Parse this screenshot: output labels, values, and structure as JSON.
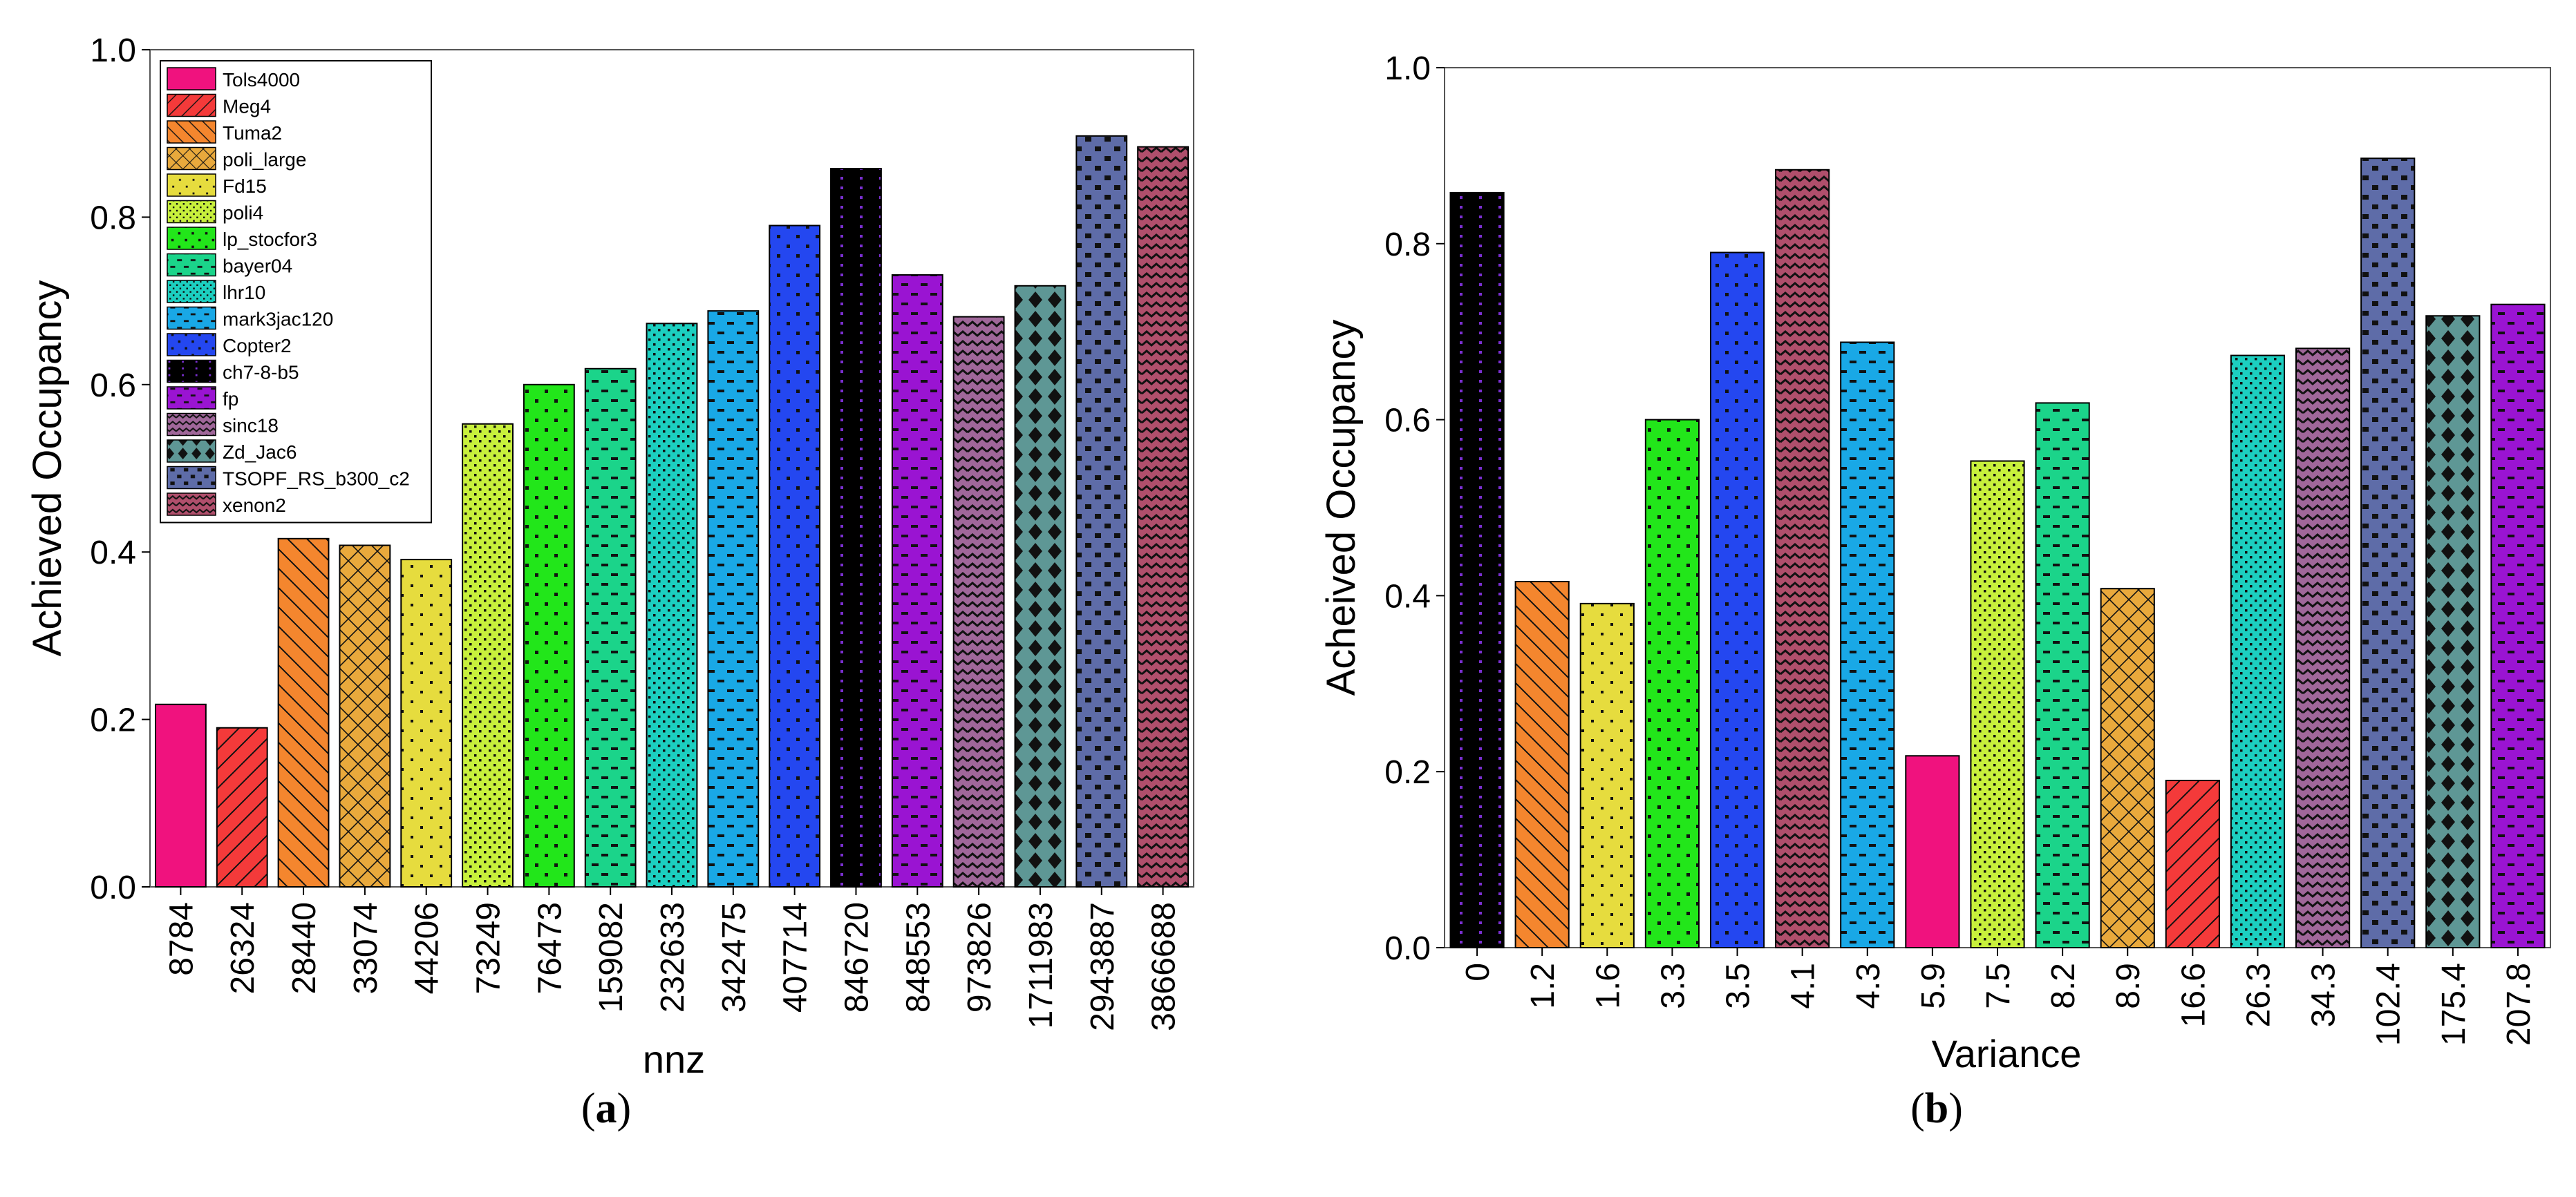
{
  "chart_data": [
    {
      "type": "bar",
      "panel_label": "a",
      "xlabel": "nnz",
      "ylabel": "Achieved Occupancy",
      "ylim": [
        0.0,
        1.0
      ],
      "yticks": [
        "0.0",
        "0.2",
        "0.4",
        "0.6",
        "0.8",
        "1.0"
      ],
      "legend_position": "top-left",
      "categories": [
        "8784",
        "26324",
        "28440",
        "33074",
        "44206",
        "73249",
        "76473",
        "159082",
        "232633",
        "342475",
        "407714",
        "846720",
        "848553",
        "973826",
        "1711983",
        "2943887",
        "3866688"
      ],
      "series_names": [
        "Tols4000",
        "Meg4",
        "Tuma2",
        "poli_large",
        "Fd15",
        "poli4",
        "lp_stocfor3",
        "bayer04",
        "lhr10",
        "mark3jac120",
        "Copter2",
        "ch7-8-b5",
        "fp",
        "sinc18",
        "Zd_Jac6",
        "TSOPF_RS_b300_c2",
        "xenon2"
      ],
      "values": [
        0.218,
        0.19,
        0.416,
        0.408,
        0.391,
        0.553,
        0.6,
        0.619,
        0.673,
        0.688,
        0.79,
        0.858,
        0.731,
        0.681,
        0.718,
        0.897,
        0.884
      ]
    },
    {
      "type": "bar",
      "panel_label": "b",
      "xlabel": "Variance",
      "ylabel": "Acheived Occupancy",
      "ylim": [
        0.0,
        1.0
      ],
      "yticks": [
        "0.0",
        "0.2",
        "0.4",
        "0.6",
        "0.8",
        "1.0"
      ],
      "categories": [
        "0",
        "1.2",
        "1.6",
        "3.3",
        "3.5",
        "4.1",
        "4.3",
        "5.9",
        "7.5",
        "8.2",
        "8.9",
        "16.6",
        "26.3",
        "34.3",
        "102.4",
        "175.4",
        "207.8"
      ],
      "series_names": [
        "ch7-8-b5",
        "Tuma2",
        "Fd15",
        "lp_stocfor3",
        "Copter2",
        "xenon2",
        "mark3jac120",
        "Tols4000",
        "poli4",
        "bayer04",
        "poli_large",
        "Meg4",
        "lhr10",
        "sinc18",
        "TSOPF_RS_b300_c2",
        "Zd_Jac6",
        "fp"
      ],
      "values": [
        0.858,
        0.416,
        0.391,
        0.6,
        0.79,
        0.884,
        0.688,
        0.218,
        0.553,
        0.619,
        0.408,
        0.19,
        0.673,
        0.681,
        0.897,
        0.718,
        0.731
      ]
    }
  ],
  "series_styles": {
    "Tols4000": {
      "color": "#f0127e",
      "pattern": "solid"
    },
    "Meg4": {
      "color": "#f43a3a",
      "pattern": "hatch-diag"
    },
    "Tuma2": {
      "color": "#f4862e",
      "pattern": "hatch-back"
    },
    "poli_large": {
      "color": "#e9a93c",
      "pattern": "crosshatch"
    },
    "Fd15": {
      "color": "#e6dc3e",
      "pattern": "sparse-dots"
    },
    "poli4": {
      "color": "#c8f03c",
      "pattern": "checker-fine"
    },
    "lp_stocfor3": {
      "color": "#22e61a",
      "pattern": "dots"
    },
    "bayer04": {
      "color": "#1bd48a",
      "pattern": "dashes"
    },
    "lhr10": {
      "color": "#1ccfc0",
      "pattern": "checker-fine"
    },
    "mark3jac120": {
      "color": "#19a8e6",
      "pattern": "dashes"
    },
    "Copter2": {
      "color": "#2447f0",
      "pattern": "dots"
    },
    "ch7-8-b5": {
      "color": "#000000",
      "pattern": "purple-dots"
    },
    "fp": {
      "color": "#9a14d2",
      "pattern": "dashes"
    },
    "sinc18": {
      "color": "#a0679a",
      "pattern": "zigzag"
    },
    "Zd_Jac6": {
      "color": "#5e9795",
      "pattern": "diamonds"
    },
    "TSOPF_RS_b300_c2": {
      "color": "#5e6ca8",
      "pattern": "blocks"
    },
    "xenon2": {
      "color": "#b04f6c",
      "pattern": "zigzag"
    }
  }
}
